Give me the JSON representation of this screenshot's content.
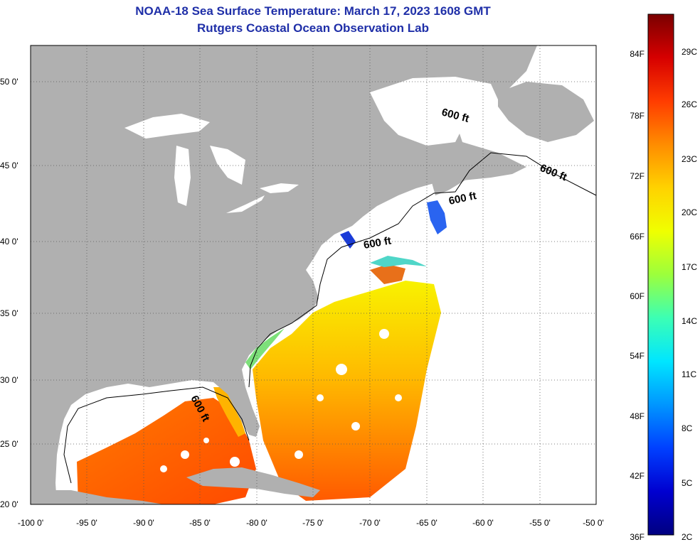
{
  "title": "NOAA-18 Sea Surface Temperature:  March 17, 2023 1608 GMT",
  "subtitle": "Rutgers Coastal Ocean Observation Lab",
  "map": {
    "lat_ticks": [
      "50 0'",
      "45 0'",
      "40 0'",
      "35 0'",
      "30 0'",
      "25 0'",
      "20 0'"
    ],
    "lon_ticks": [
      "-100 0'",
      "-95 0'",
      "-90 0'",
      "-85 0'",
      "-80 0'",
      "-75 0'",
      "-70 0'",
      "-65 0'",
      "-60 0'",
      "-55 0'",
      "-50 0'"
    ],
    "contour_labels": [
      "600 ft",
      "600 ft",
      "600 ft",
      "600 ft",
      "600 ft"
    ],
    "land_color": "#b0b0b0",
    "no_data_color": "#ffffff"
  },
  "colorbar": {
    "fahrenheit_labels": [
      "84F",
      "78F",
      "72F",
      "66F",
      "60F",
      "54F",
      "48F",
      "42F",
      "36F"
    ],
    "celsius_labels": [
      "29C",
      "26C",
      "23C",
      "20C",
      "17C",
      "14C",
      "11C",
      "8C",
      "5C",
      "2C"
    ],
    "colors_top_to_bottom": [
      "#7a0000",
      "#d60000",
      "#ff3c00",
      "#ff8c00",
      "#ffd200",
      "#f0ff00",
      "#9cff3c",
      "#3cffb4",
      "#00e6ff",
      "#0096ff",
      "#0040ff",
      "#0000d0",
      "#000080"
    ]
  }
}
